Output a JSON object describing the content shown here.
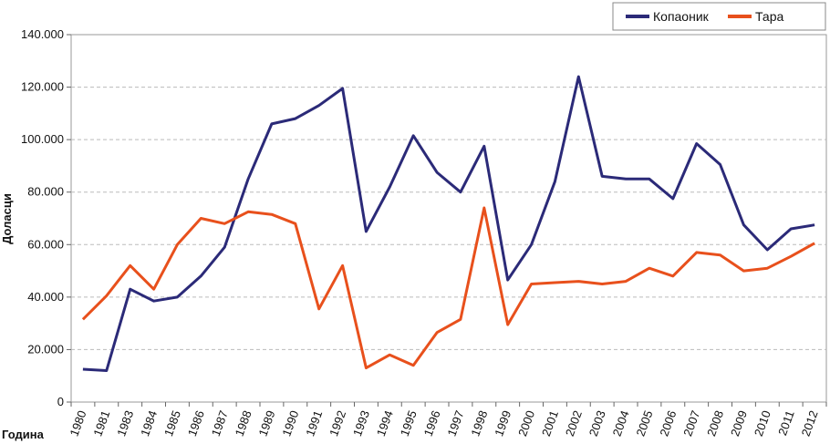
{
  "chart_data": {
    "type": "line",
    "title": "",
    "xlabel": "Година",
    "ylabel": "Доласци",
    "ylim": [
      0,
      140000
    ],
    "y_ticks": [
      0,
      20000,
      40000,
      60000,
      80000,
      100000,
      120000,
      140000
    ],
    "y_tick_labels": [
      "0",
      "20.000",
      "40.000",
      "60.000",
      "80.000",
      "100.000",
      "120.000",
      "140.000"
    ],
    "grid": true,
    "legend_position": "top-right",
    "x": [
      "1980",
      "1981",
      "1983",
      "1984",
      "1985",
      "1986",
      "1987",
      "1988",
      "1989",
      "1990",
      "1991",
      "1992",
      "1993",
      "1994",
      "1995",
      "1996",
      "1997",
      "1998",
      "1999",
      "2000",
      "2001",
      "2002",
      "2003",
      "2004",
      "2005",
      "2006",
      "2007",
      "2008",
      "2009",
      "2010",
      "2011",
      "2012"
    ],
    "series": [
      {
        "name": "Копаоник",
        "color": "#2b2a78",
        "values": [
          12500,
          12000,
          43000,
          38500,
          40000,
          48000,
          59000,
          85000,
          106000,
          108000,
          113000,
          119500,
          65000,
          82000,
          101500,
          87500,
          80000,
          97500,
          46500,
          60000,
          84000,
          124000,
          86000,
          85000,
          85000,
          77500,
          98500,
          90500,
          67500,
          58000,
          66000,
          67500
        ]
      },
      {
        "name": "Тара",
        "color": "#e8501c",
        "values": [
          31500,
          40500,
          52000,
          43000,
          60000,
          70000,
          68000,
          72500,
          71500,
          68000,
          35500,
          52000,
          13000,
          18000,
          14000,
          26500,
          31500,
          74000,
          29500,
          45000,
          45500,
          46000,
          45000,
          46000,
          51000,
          48000,
          57000,
          56000,
          50000,
          51000,
          55500,
          60500
        ]
      }
    ]
  }
}
